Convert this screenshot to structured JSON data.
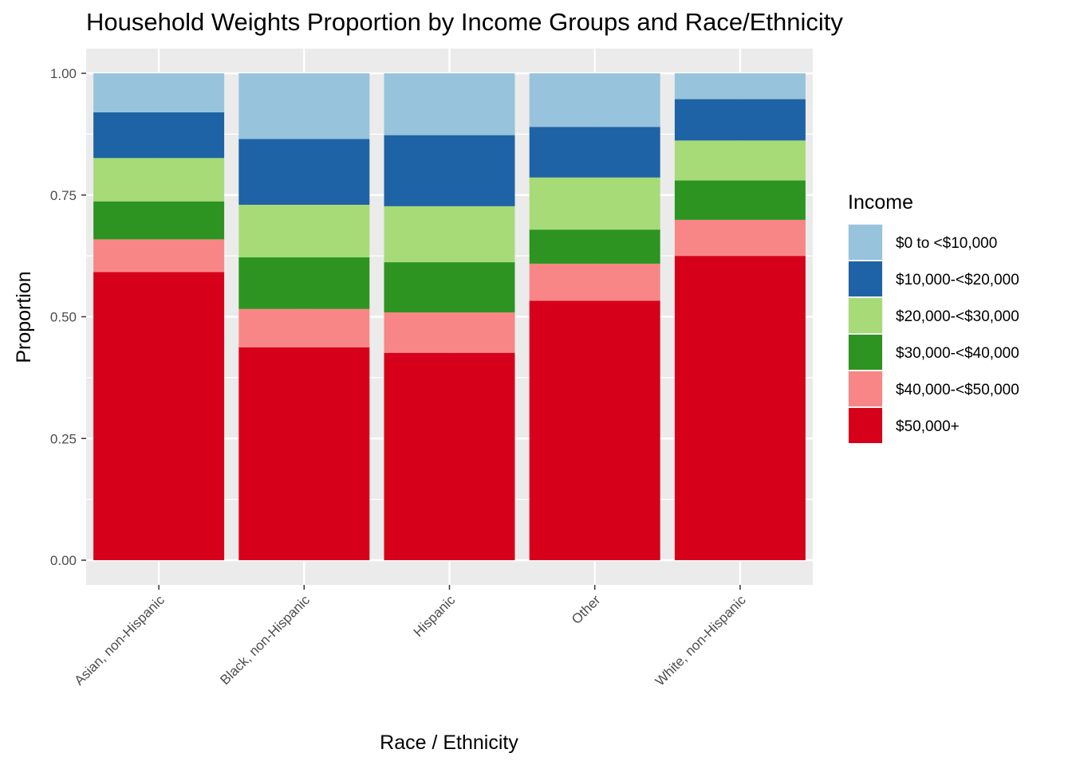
{
  "chart_data": {
    "type": "bar",
    "stacked": true,
    "title": "Household Weights Proportion by Income Groups and Race/Ethnicity",
    "xlabel": "Race / Ethnicity",
    "ylabel": "Proportion",
    "ylim": [
      0,
      1
    ],
    "yticks": [
      "0.00",
      "0.25",
      "0.50",
      "0.75",
      "1.00"
    ],
    "ytick_values": [
      0,
      0.25,
      0.5,
      0.75,
      1.0
    ],
    "grid": true,
    "legend": {
      "title": "Income",
      "position": "right"
    },
    "categories": [
      "Asian, non-Hispanic",
      "Black, non-Hispanic",
      "Hispanic",
      "Other",
      "White, non-Hispanic"
    ],
    "series": [
      {
        "name": "$50,000+",
        "color": "#D7001B",
        "values": [
          0.592,
          0.437,
          0.426,
          0.533,
          0.625
        ]
      },
      {
        "name": "$40,000-<$50,000",
        "color": "#F88686",
        "values": [
          0.067,
          0.079,
          0.083,
          0.076,
          0.074
        ]
      },
      {
        "name": "$30,000-<$40,000",
        "color": "#2E9421",
        "values": [
          0.078,
          0.106,
          0.103,
          0.07,
          0.081
        ]
      },
      {
        "name": "$20,000-<$30,000",
        "color": "#A6DB78",
        "values": [
          0.089,
          0.108,
          0.115,
          0.107,
          0.082
        ]
      },
      {
        "name": "$10,000-<$20,000",
        "color": "#1E63A5",
        "values": [
          0.094,
          0.135,
          0.146,
          0.104,
          0.085
        ]
      },
      {
        "name": "$0 to <$10,000",
        "color": "#97C3DC",
        "values": [
          0.08,
          0.135,
          0.127,
          0.11,
          0.053
        ]
      }
    ]
  }
}
